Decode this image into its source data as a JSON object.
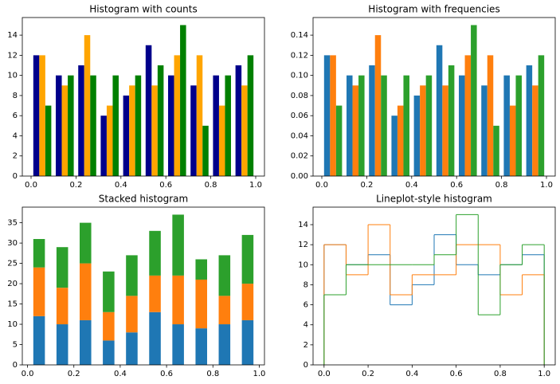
{
  "chart_data": [
    {
      "type": "histogram",
      "title": "Histogram with counts",
      "bins": [
        0,
        0.1,
        0.2,
        0.3,
        0.4,
        0.5,
        0.6,
        0.7,
        0.8,
        0.9,
        1.0
      ],
      "series": [
        {
          "color": "#00008b",
          "values": [
            12,
            10,
            11,
            6,
            8,
            13,
            10,
            9,
            10,
            11
          ]
        },
        {
          "color": "#ffa500",
          "values": [
            12,
            9,
            14,
            7,
            9,
            9,
            12,
            12,
            7,
            9
          ]
        },
        {
          "color": "#008000",
          "values": [
            7,
            10,
            10,
            10,
            10,
            11,
            15,
            5,
            10,
            12
          ]
        }
      ],
      "xlim": [
        -0.039,
        1.039
      ],
      "xticks": [
        {
          "value": 0,
          "label": "0.0"
        },
        {
          "value": 0.2,
          "label": "0.2"
        },
        {
          "value": 0.4,
          "label": "0.4"
        },
        {
          "value": 0.6,
          "label": "0.6"
        },
        {
          "value": 0.8,
          "label": "0.8"
        },
        {
          "value": 1.0,
          "label": "1.0"
        }
      ],
      "ylim": [
        0,
        15.75
      ],
      "yticks": [
        0,
        2,
        4,
        6,
        8,
        10,
        12,
        14
      ]
    },
    {
      "type": "histogram",
      "title": "Histogram with frequencies",
      "bins": [
        0,
        0.1,
        0.2,
        0.3,
        0.4,
        0.5,
        0.6,
        0.7,
        0.8,
        0.9,
        1.0
      ],
      "series": [
        {
          "color": "#1f77b4",
          "values": [
            0.12,
            0.1,
            0.11,
            0.06,
            0.08,
            0.13,
            0.1,
            0.09,
            0.1,
            0.11
          ]
        },
        {
          "color": "#ff7f0e",
          "values": [
            0.12,
            0.09,
            0.14,
            0.07,
            0.09,
            0.09,
            0.12,
            0.12,
            0.07,
            0.09
          ]
        },
        {
          "color": "#2ca02c",
          "values": [
            0.07,
            0.1,
            0.1,
            0.1,
            0.1,
            0.11,
            0.15,
            0.05,
            0.1,
            0.12
          ]
        }
      ],
      "xlim": [
        -0.039,
        1.039
      ],
      "xticks": [
        {
          "value": 0,
          "label": "0.0"
        },
        {
          "value": 0.2,
          "label": "0.2"
        },
        {
          "value": 0.4,
          "label": "0.4"
        },
        {
          "value": 0.6,
          "label": "0.6"
        },
        {
          "value": 0.8,
          "label": "0.8"
        },
        {
          "value": 1.0,
          "label": "1.0"
        }
      ],
      "ylim": [
        0,
        0.1575
      ],
      "yticks": [
        {
          "value": 0,
          "label": "0.00"
        },
        {
          "value": 0.02,
          "label": "0.02"
        },
        {
          "value": 0.04,
          "label": "0.04"
        },
        {
          "value": 0.06,
          "label": "0.06"
        },
        {
          "value": 0.08,
          "label": "0.08"
        },
        {
          "value": 0.1,
          "label": "0.10"
        },
        {
          "value": 0.12,
          "label": "0.12"
        },
        {
          "value": 0.14,
          "label": "0.14"
        }
      ]
    },
    {
      "type": "stacked_histogram",
      "title": "Stacked histogram",
      "bins": [
        0,
        0.1,
        0.2,
        0.3,
        0.4,
        0.5,
        0.6,
        0.7,
        0.8,
        0.9,
        1.0
      ],
      "series": [
        {
          "color": "#1f77b4",
          "values": [
            12,
            10,
            11,
            6,
            8,
            13,
            10,
            9,
            10,
            11
          ]
        },
        {
          "color": "#ff7f0e",
          "values": [
            12,
            9,
            14,
            7,
            9,
            9,
            12,
            12,
            7,
            9
          ]
        },
        {
          "color": "#2ca02c",
          "values": [
            7,
            10,
            10,
            10,
            10,
            11,
            15,
            5,
            10,
            12
          ]
        }
      ],
      "xlim": [
        -0.0225,
        1.0225
      ],
      "xticks": [
        {
          "value": 0,
          "label": "0.0"
        },
        {
          "value": 0.2,
          "label": "0.2"
        },
        {
          "value": 0.4,
          "label": "0.4"
        },
        {
          "value": 0.6,
          "label": "0.6"
        },
        {
          "value": 0.8,
          "label": "0.8"
        },
        {
          "value": 1.0,
          "label": "1.0"
        }
      ],
      "ylim": [
        0,
        38.85
      ],
      "yticks": [
        0,
        5,
        10,
        15,
        20,
        25,
        30,
        35
      ]
    },
    {
      "type": "step_histogram",
      "title": "Lineplot-style histogram",
      "bins": [
        0,
        0.1,
        0.2,
        0.3,
        0.4,
        0.5,
        0.6,
        0.7,
        0.8,
        0.9,
        1.0
      ],
      "series": [
        {
          "color": "#1f77b4",
          "values": [
            12,
            10,
            11,
            6,
            8,
            13,
            10,
            9,
            10,
            11
          ]
        },
        {
          "color": "#ff7f0e",
          "values": [
            12,
            9,
            14,
            7,
            9,
            9,
            12,
            12,
            7,
            9
          ]
        },
        {
          "color": "#2ca02c",
          "values": [
            7,
            10,
            10,
            10,
            10,
            11,
            15,
            5,
            10,
            12
          ]
        }
      ],
      "xlim": [
        -0.05,
        1.05
      ],
      "xticks": [
        {
          "value": 0,
          "label": "0.0"
        },
        {
          "value": 0.2,
          "label": "0.2"
        },
        {
          "value": 0.4,
          "label": "0.4"
        },
        {
          "value": 0.6,
          "label": "0.6"
        },
        {
          "value": 0.8,
          "label": "0.8"
        },
        {
          "value": 1.0,
          "label": "1.0"
        }
      ],
      "ylim": [
        0,
        15.75
      ],
      "yticks": [
        0,
        2,
        4,
        6,
        8,
        10,
        12,
        14
      ]
    }
  ]
}
